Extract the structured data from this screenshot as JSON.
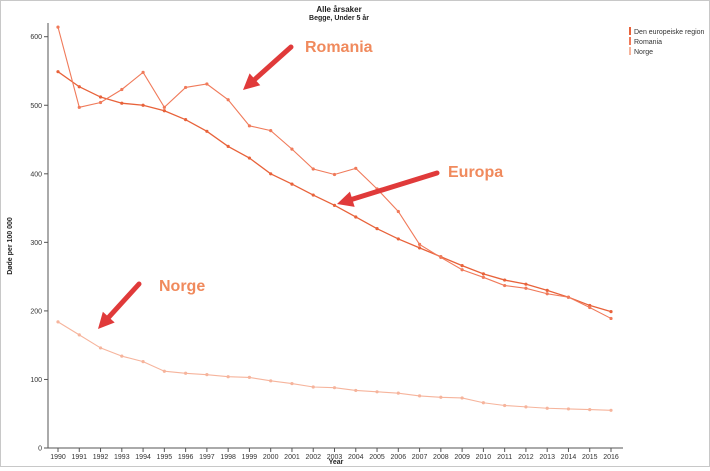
{
  "chart_data": {
    "type": "line",
    "title": "Alle årsaker",
    "subtitle": "Begge, Under 5 år",
    "xlabel": "Year",
    "ylabel": "Døde per 100 000",
    "x": [
      1990,
      1991,
      1992,
      1993,
      1994,
      1995,
      1996,
      1997,
      1998,
      1999,
      2000,
      2001,
      2002,
      2003,
      2004,
      2005,
      2006,
      2007,
      2008,
      2009,
      2010,
      2011,
      2012,
      2013,
      2014,
      2015,
      2016
    ],
    "ylim": [
      0,
      620
    ],
    "yticks": [
      0,
      100,
      200,
      300,
      400,
      500,
      600
    ],
    "grid": false,
    "legend_position": "top-right",
    "series": [
      {
        "name": "Den europeiske region",
        "color": "#e8623a",
        "values": [
          549,
          527,
          512,
          503,
          500,
          492,
          479,
          462,
          440,
          423,
          400,
          385,
          369,
          354,
          337,
          320,
          305,
          292,
          279,
          266,
          254,
          245,
          239,
          230,
          220,
          208,
          199
        ]
      },
      {
        "name": "Romania",
        "color": "#f07a5a",
        "values": [
          614,
          497,
          504,
          523,
          548,
          497,
          526,
          531,
          508,
          470,
          463,
          436,
          407,
          399,
          408,
          378,
          345,
          297,
          278,
          260,
          249,
          237,
          233,
          225,
          220,
          205,
          189
        ]
      },
      {
        "name": "Norge",
        "color": "#f6b49c",
        "values": [
          184,
          165,
          146,
          134,
          126,
          112,
          109,
          107,
          104,
          103,
          98,
          94,
          89,
          88,
          84,
          82,
          80,
          76,
          74,
          73,
          66,
          62,
          60,
          58,
          57,
          56,
          55
        ]
      }
    ],
    "annotations": [
      {
        "text": "Romania",
        "color": "#f08a5d"
      },
      {
        "text": "Europa",
        "color": "#f08a5d"
      },
      {
        "text": "Norge",
        "color": "#f08a5d"
      }
    ]
  }
}
